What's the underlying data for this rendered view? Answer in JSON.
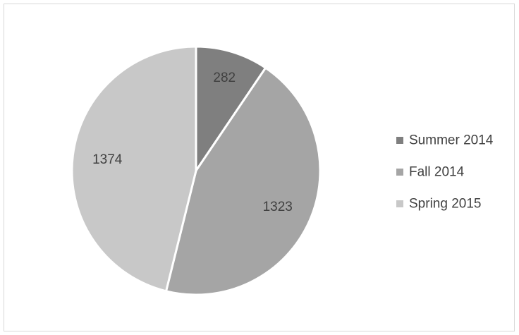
{
  "chart_data": {
    "type": "pie",
    "categories": [
      "Summer 2014",
      "Fall 2014",
      "Spring 2015"
    ],
    "values": [
      282,
      1323,
      1374
    ],
    "colors": [
      "#7f7f7f",
      "#a5a5a5",
      "#c8c8c8"
    ],
    "data_labels": [
      "282",
      "1323",
      "1374"
    ],
    "legend_position": "right",
    "title": ""
  }
}
